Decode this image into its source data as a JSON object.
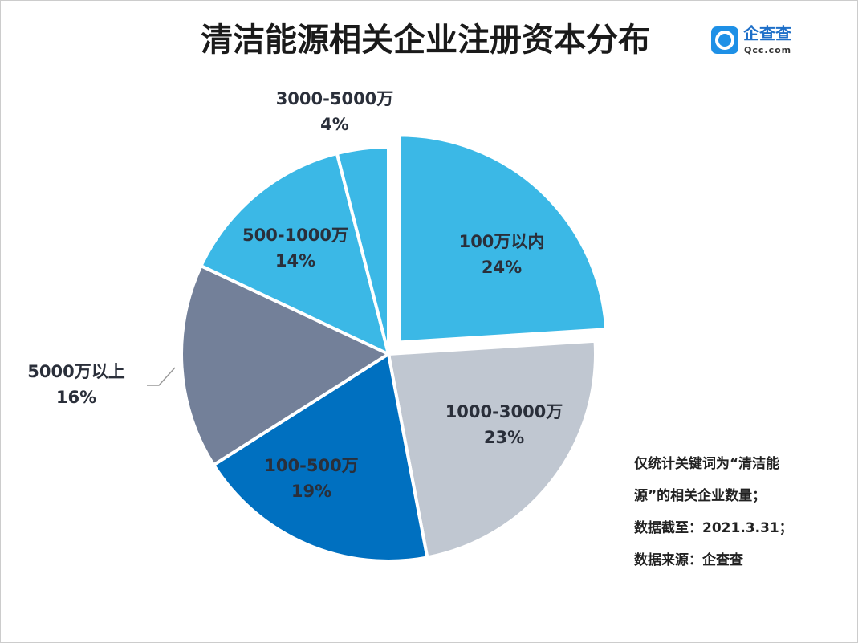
{
  "chart_data": {
    "type": "pie",
    "title": "清洁能源相关企业注册资本分布",
    "categories": [
      "100万以内",
      "1000-3000万",
      "100-500万",
      "5000万以上",
      "500-1000万",
      "3000-5000万"
    ],
    "values": [
      24,
      23,
      19,
      16,
      14,
      4
    ],
    "value_labels": [
      "24%",
      "23%",
      "19%",
      "16%",
      "14%",
      "4%"
    ],
    "colors": [
      "#3bb8e6",
      "#c0c7d1",
      "#0070c0",
      "#738099",
      "#3bb8e6",
      "#3bb8e6"
    ],
    "notes": [
      "仅统计关键词为“清洁能",
      "源”的相关企业数量；",
      "数据截至：2021.3.31；",
      "数据来源：企查查"
    ]
  },
  "logo": {
    "name": "企查查",
    "site": "Qcc.com"
  }
}
